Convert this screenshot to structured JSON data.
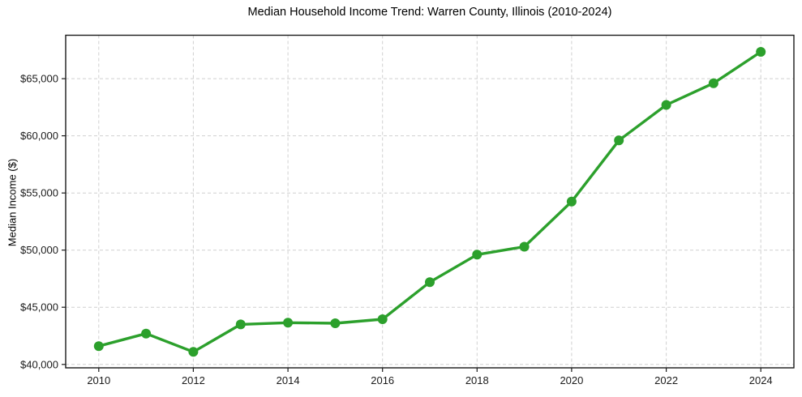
{
  "chart_data": {
    "type": "line",
    "title": "Median Household Income Trend: Warren County, Illinois (2010-2024)",
    "xlabel": "",
    "ylabel": "Median Income ($)",
    "x": [
      2010,
      2011,
      2012,
      2013,
      2014,
      2015,
      2016,
      2017,
      2018,
      2019,
      2020,
      2021,
      2022,
      2023,
      2024
    ],
    "series": [
      {
        "name": "median-household-income",
        "color": "#2ca02c",
        "values": [
          41600,
          42700,
          41100,
          43500,
          43650,
          43600,
          43950,
          47200,
          49600,
          50300,
          54250,
          59600,
          62700,
          64600,
          67350
        ]
      }
    ],
    "xticks": {
      "values": [
        2010,
        2012,
        2014,
        2016,
        2018,
        2020,
        2022,
        2024
      ],
      "labels": [
        "2010",
        "2012",
        "2014",
        "2016",
        "2018",
        "2020",
        "2022",
        "2024"
      ]
    },
    "yticks": {
      "values": [
        40000,
        45000,
        50000,
        55000,
        60000,
        65000
      ],
      "labels": [
        "$40,000",
        "$45,000",
        "$50,000",
        "$55,000",
        "$60,000",
        "$65,000"
      ]
    },
    "xlim": [
      2009.3,
      2024.7
    ],
    "ylim": [
      39700,
      68800
    ],
    "grid": true,
    "grid_style": "dashed",
    "grid_color": "#d0d0d0",
    "axis_color": "#1a1a1a",
    "text_color": "#1a1a1a",
    "legend": "none",
    "marker": "circle",
    "background": "#ffffff"
  }
}
